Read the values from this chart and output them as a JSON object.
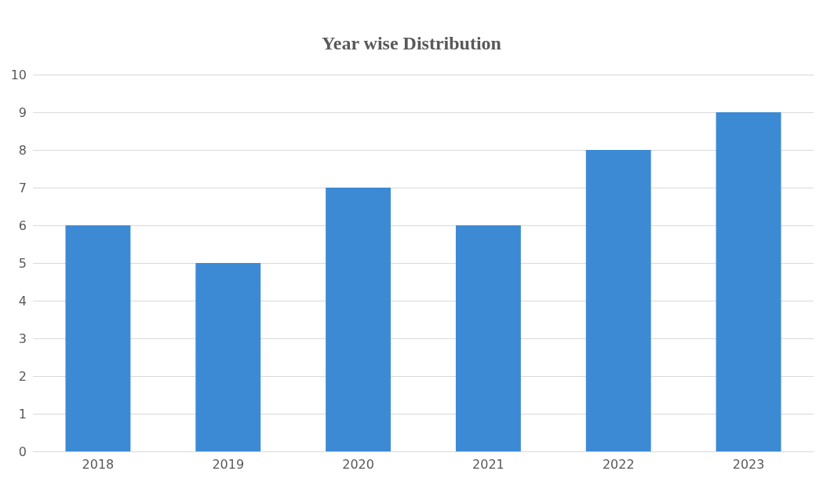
{
  "chart_data": {
    "type": "bar",
    "title": "Year wise Distribution",
    "categories": [
      "2018",
      "2019",
      "2020",
      "2021",
      "2022",
      "2023"
    ],
    "values": [
      6,
      5,
      7,
      6,
      8,
      9
    ],
    "color": "#3d8ad4",
    "ylim": [
      0,
      10
    ],
    "yticks": [
      0,
      1,
      2,
      3,
      4,
      5,
      6,
      7,
      8,
      9,
      10
    ],
    "grid": "y"
  }
}
